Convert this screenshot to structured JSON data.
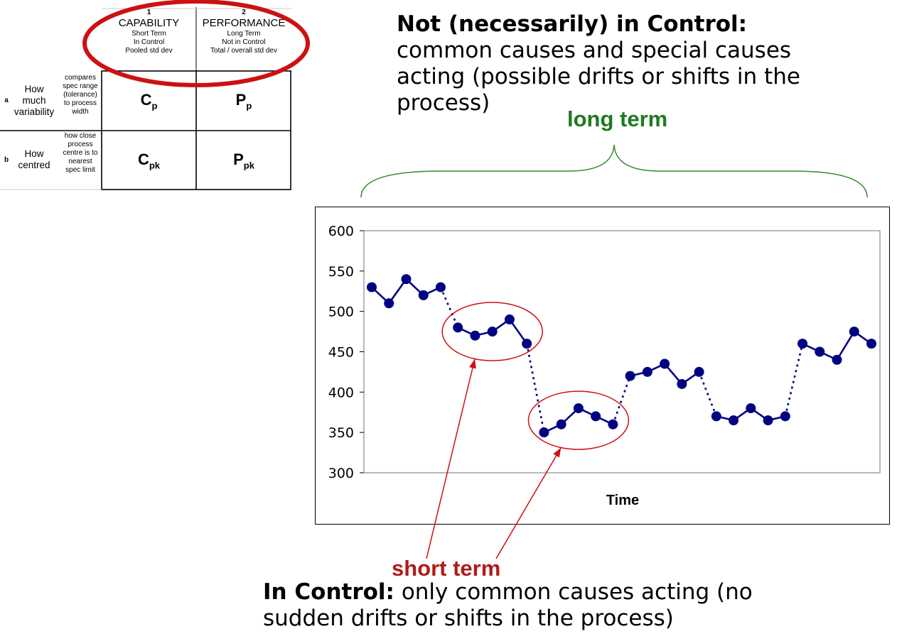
{
  "table": {
    "columns": [
      {
        "number": "1",
        "title": "CAPABILITY",
        "lines": [
          "Short Term",
          "In Control",
          "Pooled std dev"
        ]
      },
      {
        "number": "2",
        "title": "PERFORMANCE",
        "lines": [
          "Long Term",
          "Not in Control",
          "Total / overall std dev"
        ]
      }
    ],
    "rows": [
      {
        "letter": "a",
        "title_lines": [
          "How",
          "much",
          "variability"
        ],
        "desc_lines": [
          "compares",
          "spec range",
          "(tolerance)",
          "to process",
          "width"
        ],
        "cells": [
          {
            "base": "C",
            "sub": "p"
          },
          {
            "base": "P",
            "sub": "p"
          }
        ]
      },
      {
        "letter": "b",
        "title_lines": [
          "How",
          "centred"
        ],
        "desc_lines": [
          "how close",
          "process",
          "centre is to",
          "nearest",
          "spec limit"
        ],
        "cells": [
          {
            "base": "C",
            "sub": "pk"
          },
          {
            "base": "P",
            "sub": "pk"
          }
        ]
      }
    ],
    "highlight_color": "#cc1111"
  },
  "not_in_control": {
    "heading": "Not (necessarily) in Control:",
    "body": "common causes and special causes acting (possible drifts or shifts in the process)"
  },
  "in_control": {
    "heading": "In Control:",
    "body": "only common causes acting (no sudden drifts or shifts in the process)"
  },
  "labels": {
    "long_term": "long term",
    "short_term": "short term"
  },
  "colors": {
    "series": "#000080",
    "long_term": "#1f7a1f",
    "short_term": "#b01a1a"
  },
  "chart_data": {
    "type": "line",
    "xlabel": "Time",
    "ylabel": "",
    "ylim": [
      300,
      600
    ],
    "yticks": [
      300,
      350,
      400,
      450,
      500,
      550,
      600
    ],
    "grid": false,
    "legend": "none",
    "segments": [
      [
        530,
        510,
        540,
        520,
        530
      ],
      [
        480,
        470,
        475,
        490,
        460
      ],
      [
        350,
        360,
        380,
        370,
        360
      ],
      [
        420,
        425,
        435,
        410,
        425
      ],
      [
        370,
        365,
        380,
        365,
        370
      ],
      [
        460,
        450,
        440,
        475,
        460
      ]
    ],
    "segment_joins": "dotted",
    "highlighted_segments": [
      1,
      2
    ]
  }
}
